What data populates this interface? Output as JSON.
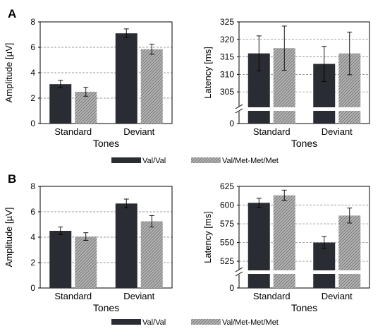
{
  "colors": {
    "val_val": "#2a2c33",
    "val_met": "#8a8a8a",
    "grid": "#777777",
    "axis": "#000000"
  },
  "panels": [
    {
      "letter": "A",
      "legend": [
        "Val/Val",
        "Val/Met-Met/Met"
      ]
    },
    {
      "letter": "B",
      "legend": [
        "Val/Val",
        "Val/Met-Met/Met"
      ]
    }
  ],
  "chart_data": [
    {
      "type": "bar",
      "panel": "A",
      "categories": [
        "Standard",
        "Deviant"
      ],
      "xlabel": "Tones",
      "ylabel": "Amplitude [µV]",
      "ylim": [
        0,
        8
      ],
      "yticks": [
        0,
        2,
        4,
        6,
        8
      ],
      "grid": "dashed horizontal",
      "series": [
        {
          "name": "Val/Val",
          "values": [
            3.1,
            7.1
          ],
          "errors": [
            0.3,
            0.35
          ]
        },
        {
          "name": "Val/Met-Met/Met",
          "values": [
            2.5,
            5.85
          ],
          "errors": [
            0.35,
            0.4
          ]
        }
      ]
    },
    {
      "type": "bar",
      "panel": "A",
      "categories": [
        "Standard",
        "Deviant"
      ],
      "xlabel": "Tones",
      "ylabel": "Latency [ms]",
      "ylim": [
        0,
        325
      ],
      "axis_break": [
        0,
        300
      ],
      "yticks": [
        0,
        305,
        310,
        315,
        320,
        325
      ],
      "grid": "dashed horizontal",
      "series": [
        {
          "name": "Val/Val",
          "values": [
            316,
            313
          ],
          "errors": [
            5,
            5
          ]
        },
        {
          "name": "Val/Met-Met/Met",
          "values": [
            317.5,
            316
          ],
          "errors": [
            6.3,
            6.1
          ]
        }
      ]
    },
    {
      "type": "bar",
      "panel": "B",
      "categories": [
        "Standard",
        "Deviant"
      ],
      "xlabel": "Tones",
      "ylabel": "Amplitude [µV]",
      "ylim": [
        0,
        8
      ],
      "yticks": [
        0,
        2,
        4,
        6,
        8
      ],
      "grid": "dashed horizontal",
      "series": [
        {
          "name": "Val/Val",
          "values": [
            4.5,
            6.65
          ],
          "errors": [
            0.3,
            0.35
          ]
        },
        {
          "name": "Val/Met-Met/Met",
          "values": [
            4.05,
            5.25
          ],
          "errors": [
            0.3,
            0.45
          ]
        }
      ]
    },
    {
      "type": "bar",
      "panel": "B",
      "categories": [
        "Standard",
        "Deviant"
      ],
      "xlabel": "Tones",
      "ylabel": "Latency [ms]",
      "ylim": [
        0,
        625
      ],
      "axis_break": [
        0,
        510
      ],
      "yticks": [
        0,
        525,
        550,
        575,
        600,
        625
      ],
      "grid": "dashed horizontal",
      "series": [
        {
          "name": "Val/Val",
          "values": [
            603,
            550
          ],
          "errors": [
            6,
            8
          ]
        },
        {
          "name": "Val/Met-Met/Met",
          "values": [
            613,
            586
          ],
          "errors": [
            7,
            10
          ]
        }
      ]
    }
  ]
}
